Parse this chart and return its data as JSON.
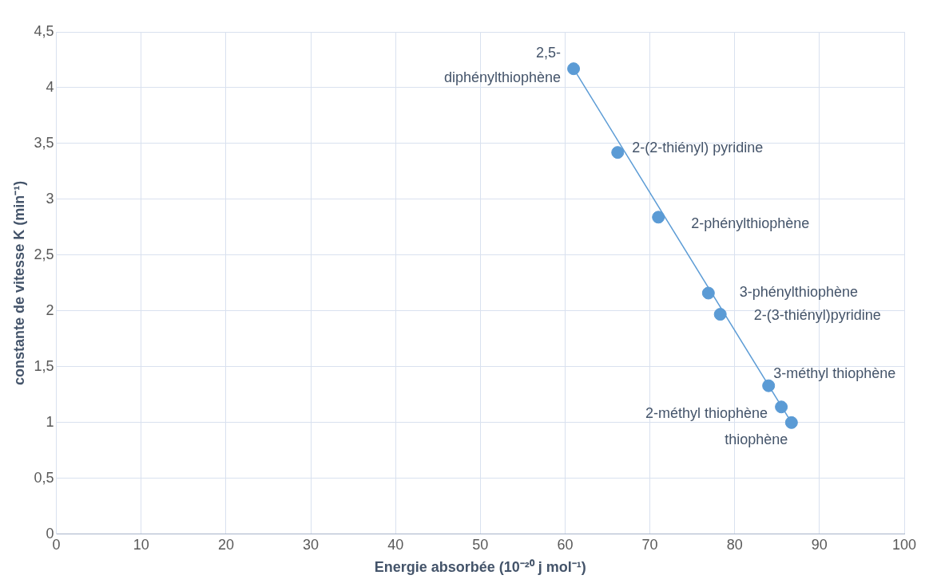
{
  "chart_data": {
    "type": "scatter",
    "xlabel": "Energie absorbée (10⁻²⁰ j mol⁻¹)",
    "ylabel": "constante de vitesse K (min⁻¹)",
    "xlim": [
      0,
      100
    ],
    "xticks": [
      0,
      10,
      20,
      30,
      40,
      50,
      60,
      70,
      80,
      90,
      100
    ],
    "ylim": [
      0,
      4.5
    ],
    "yticks": [
      0,
      {
        "value": 0.5,
        "label": "0,5"
      },
      1,
      {
        "value": 1.5,
        "label": "1,5"
      },
      2,
      {
        "value": 2.5,
        "label": "2,5"
      },
      3,
      {
        "value": 3.5,
        "label": "3,5"
      },
      4,
      {
        "value": 4.5,
        "label": "4,5"
      }
    ],
    "grid": true,
    "legend": false,
    "series": [
      {
        "type": "scatter",
        "color": "#5b9bd5",
        "marker": "circle",
        "x": [
          61.0,
          66.2,
          71.0,
          76.9,
          78.3,
          84.0,
          85.5,
          86.7
        ],
        "values": [
          4.17,
          3.42,
          2.84,
          2.16,
          1.97,
          1.33,
          1.14,
          1.0
        ]
      },
      {
        "type": "line",
        "color": "#5b9bd5",
        "marker": "none",
        "x": [
          61.0,
          86.7
        ],
        "values": [
          4.17,
          1.0
        ]
      }
    ],
    "annotations": [
      {
        "text": "2,5-diphénylthiophène",
        "x": 61.0,
        "y": 4.17
      },
      {
        "text": "2-(2-thiényl) pyridine",
        "x": 66.2,
        "y": 3.42
      },
      {
        "text": "2-phénylthiophène",
        "x": 71.0,
        "y": 2.84
      },
      {
        "text": "3-phénylthiophène",
        "x": 76.9,
        "y": 2.16
      },
      {
        "text": "2-(3-thiényl)pyridine",
        "x": 78.3,
        "y": 1.97
      },
      {
        "text": "3-méthyl thiophène",
        "x": 84.0,
        "y": 1.33
      },
      {
        "text": "2-méthyl thiophène",
        "x": 85.5,
        "y": 1.14
      },
      {
        "text": "thiophène",
        "x": 86.7,
        "y": 1.0
      }
    ]
  }
}
